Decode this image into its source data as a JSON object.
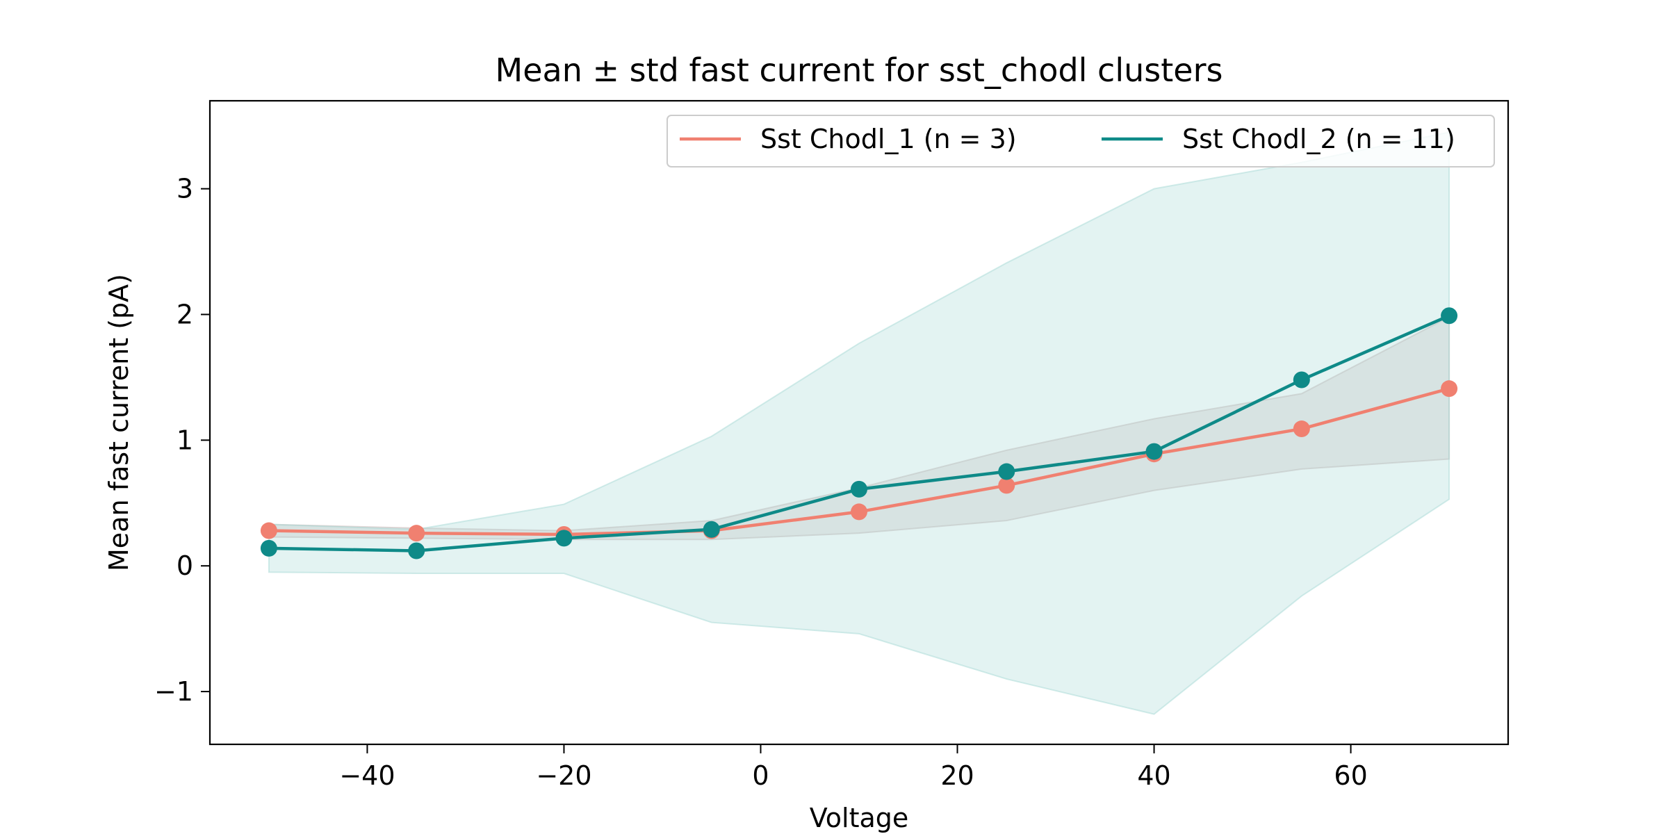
{
  "chart_data": {
    "type": "line",
    "title": "Mean ± std fast current for sst_chodl clusters",
    "xlabel": "Voltage",
    "ylabel": "Mean fast current (pA)",
    "xlim": [
      -56,
      76
    ],
    "ylim": [
      -1.42,
      3.7
    ],
    "x_ticks": [
      -40,
      -20,
      0,
      20,
      40,
      60
    ],
    "x_tick_labels": [
      "−40",
      "−20",
      "0",
      "20",
      "40",
      "60"
    ],
    "y_ticks": [
      -1,
      0,
      1,
      2,
      3
    ],
    "y_tick_labels": [
      "−1",
      "0",
      "1",
      "2",
      "3"
    ],
    "grid": false,
    "legend_position": "top-right",
    "x": [
      -50,
      -35,
      -20,
      -5,
      10,
      25,
      40,
      55,
      70
    ],
    "series": [
      {
        "name": "Sst Chodl_1 (n = 3)",
        "color": "#f08070",
        "band_color": "#c8b4b4",
        "values": [
          0.28,
          0.26,
          0.25,
          0.28,
          0.43,
          0.64,
          0.89,
          1.09,
          1.41
        ],
        "std_lower": [
          0.23,
          0.22,
          0.21,
          0.21,
          0.26,
          0.36,
          0.6,
          0.77,
          0.85
        ],
        "std_upper": [
          0.33,
          0.3,
          0.28,
          0.36,
          0.62,
          0.92,
          1.17,
          1.37,
          1.98
        ]
      },
      {
        "name": "Sst Chodl_2 (n = 11)",
        "color": "#0e8a88",
        "band_color": "#a8dad6",
        "values": [
          0.14,
          0.12,
          0.22,
          0.29,
          0.61,
          0.75,
          0.91,
          1.48,
          1.99
        ],
        "std_lower": [
          -0.05,
          -0.06,
          -0.06,
          -0.45,
          -0.54,
          -0.9,
          -1.18,
          -0.24,
          0.53
        ],
        "std_upper": [
          0.33,
          0.29,
          0.49,
          1.03,
          1.77,
          2.41,
          3.0,
          3.21,
          3.45
        ]
      }
    ]
  }
}
